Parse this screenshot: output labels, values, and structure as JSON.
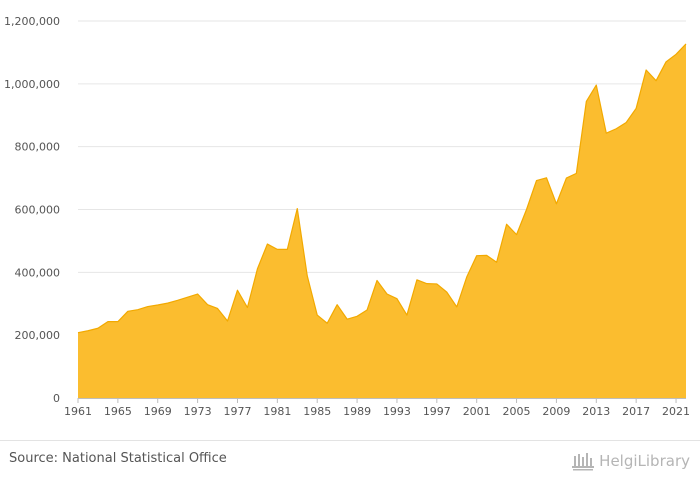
{
  "chart_data": {
    "type": "area",
    "x": [
      1961,
      1962,
      1963,
      1964,
      1965,
      1966,
      1967,
      1968,
      1969,
      1970,
      1971,
      1972,
      1973,
      1974,
      1975,
      1976,
      1977,
      1978,
      1979,
      1980,
      1981,
      1982,
      1983,
      1984,
      1985,
      1986,
      1987,
      1988,
      1989,
      1990,
      1991,
      1992,
      1993,
      1994,
      1995,
      1996,
      1997,
      1998,
      1999,
      2000,
      2001,
      2002,
      2003,
      2004,
      2005,
      2006,
      2007,
      2008,
      2009,
      2010,
      2011,
      2012,
      2013,
      2014,
      2015,
      2016,
      2017,
      2018,
      2019,
      2020,
      2021,
      2022
    ],
    "values": [
      208000,
      214000,
      222000,
      243000,
      243000,
      276000,
      281000,
      291000,
      296000,
      302000,
      311000,
      321000,
      331000,
      297000,
      285000,
      245000,
      343000,
      288000,
      411000,
      490000,
      473000,
      473000,
      603000,
      389000,
      264000,
      238000,
      297000,
      251000,
      260000,
      280000,
      374000,
      331000,
      316000,
      264000,
      376000,
      364000,
      363000,
      337000,
      290000,
      385000,
      453000,
      454000,
      432000,
      553000,
      520000,
      600000,
      692000,
      701000,
      618000,
      700000,
      715000,
      944000,
      996000,
      843000,
      857000,
      877000,
      922000,
      1044000,
      1010000,
      1070000,
      1094000,
      1127000
    ],
    "xticks": [
      1961,
      1965,
      1969,
      1973,
      1977,
      1981,
      1985,
      1989,
      1993,
      1997,
      2001,
      2005,
      2009,
      2013,
      2017,
      2021
    ],
    "yticks": [
      0,
      200000,
      400000,
      600000,
      800000,
      1000000,
      1200000
    ],
    "ylim": [
      0,
      1200000
    ],
    "title": "",
    "xlabel": "",
    "ylabel": "",
    "grid": true,
    "fill_color": "#fbbd2f",
    "line_color": "#f2a900"
  },
  "footer": {
    "source": "Source: National Statistical Office",
    "brand": "HelgiLibrary"
  },
  "colors": {
    "grid": "#e6e6e6",
    "axis": "#bdbdbd",
    "brand_gray": "#b5b5b5"
  }
}
